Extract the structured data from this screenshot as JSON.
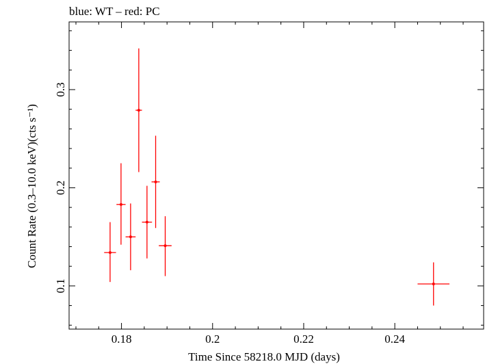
{
  "chart_data": {
    "type": "scatter",
    "title": "blue: WT – red: PC",
    "xlabel": "Time Since 58218.0 MJD (days)",
    "ylabel": "Count Rate (0.3–10.0 keV)(cts s⁻¹)",
    "xlim": [
      0.1685,
      0.2595
    ],
    "ylim": [
      0.056,
      0.369
    ],
    "x_ticks": [
      {
        "value": 0.18,
        "label": "0.18"
      },
      {
        "value": 0.2,
        "label": "0.2"
      },
      {
        "value": 0.22,
        "label": "0.22"
      },
      {
        "value": 0.24,
        "label": "0.24"
      }
    ],
    "y_ticks": [
      {
        "value": 0.1,
        "label": "0.1"
      },
      {
        "value": 0.2,
        "label": "0.2"
      },
      {
        "value": 0.3,
        "label": "0.3"
      }
    ],
    "grid": false,
    "series": [
      {
        "color": "#ff0000",
        "points": [
          {
            "x": 0.1775,
            "xerr": 0.0013,
            "y": 0.134,
            "yerr_lo": 0.03,
            "yerr_hi": 0.031
          },
          {
            "x": 0.1799,
            "xerr": 0.001,
            "y": 0.183,
            "yerr_lo": 0.041,
            "yerr_hi": 0.042
          },
          {
            "x": 0.182,
            "xerr": 0.0011,
            "y": 0.15,
            "yerr_lo": 0.034,
            "yerr_hi": 0.034
          },
          {
            "x": 0.1838,
            "xerr": 0.0007,
            "y": 0.279,
            "yerr_lo": 0.063,
            "yerr_hi": 0.063
          },
          {
            "x": 0.1856,
            "xerr": 0.0011,
            "y": 0.165,
            "yerr_lo": 0.037,
            "yerr_hi": 0.037
          },
          {
            "x": 0.1875,
            "xerr": 0.0009,
            "y": 0.206,
            "yerr_lo": 0.047,
            "yerr_hi": 0.047
          },
          {
            "x": 0.1896,
            "xerr": 0.0014,
            "y": 0.141,
            "yerr_lo": 0.031,
            "yerr_hi": 0.03
          },
          {
            "x": 0.2485,
            "xerr": 0.0035,
            "y": 0.102,
            "yerr_lo": 0.022,
            "yerr_hi": 0.022
          }
        ]
      }
    ]
  }
}
